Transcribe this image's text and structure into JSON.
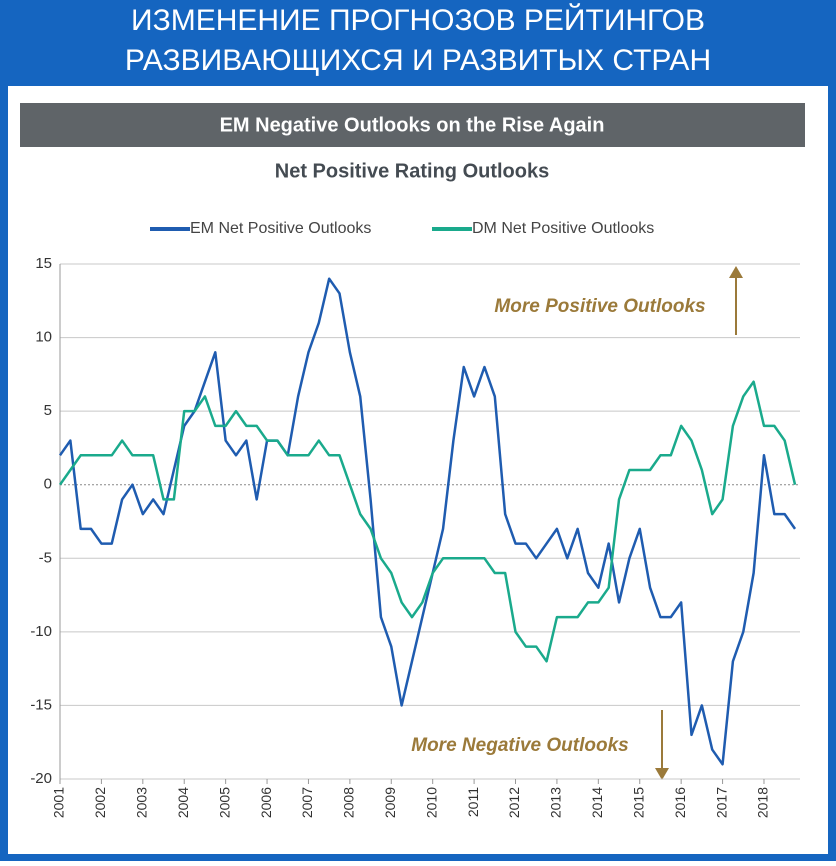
{
  "header": {
    "lines": [
      "ИЗМЕНЕНИЕ ПРОГНОЗОВ РЕЙТИНГОВ",
      "РАЗВИВАЮЩИХСЯ И РАЗВИТЫХ СТРАН"
    ]
  },
  "chart_data": {
    "type": "line",
    "title": "EM Negative Outlooks on the Rise Again",
    "subtitle": "Net Positive Rating Outlooks",
    "annotations": [
      "More Positive Outlooks",
      "More Negative Outlooks"
    ],
    "x": [
      2001,
      2001.25,
      2001.5,
      2001.75,
      2002,
      2002.25,
      2002.5,
      2002.75,
      2003,
      2003.25,
      2003.5,
      2003.75,
      2004,
      2004.25,
      2004.5,
      2004.75,
      2005,
      2005.25,
      2005.5,
      2005.75,
      2006,
      2006.25,
      2006.5,
      2006.75,
      2007,
      2007.25,
      2007.5,
      2007.75,
      2008,
      2008.25,
      2008.5,
      2008.75,
      2009,
      2009.25,
      2009.5,
      2009.75,
      2010,
      2010.25,
      2010.5,
      2010.75,
      2011,
      2011.25,
      2011.5,
      2011.75,
      2012,
      2012.25,
      2012.5,
      2012.75,
      2013,
      2013.25,
      2013.5,
      2013.75,
      2014,
      2014.25,
      2014.5,
      2014.75,
      2015,
      2015.25,
      2015.5,
      2015.75,
      2016,
      2016.25,
      2016.5,
      2016.75,
      2017,
      2017.25,
      2017.5,
      2017.75,
      2018,
      2018.25,
      2018.5,
      2018.75
    ],
    "series": [
      {
        "name": "EM Net Positive Outlooks",
        "color": "#1f5cb0",
        "values": [
          2,
          3,
          -3,
          -3,
          -4,
          -4,
          -1,
          0,
          -2,
          -1,
          -2,
          1,
          4,
          5,
          7,
          9,
          3,
          2,
          3,
          -1,
          3,
          3,
          2,
          6,
          9,
          11,
          14,
          13,
          9,
          6,
          -1,
          -9,
          -11,
          -15,
          -12,
          -9,
          -6,
          -3,
          3,
          8,
          6,
          8,
          6,
          -2,
          -4,
          -4,
          -5,
          -4,
          -3,
          -5,
          -3,
          -6,
          -7,
          -4,
          -8,
          -5,
          -3,
          -7,
          -9,
          -9,
          -8,
          -17,
          -15,
          -18,
          -19,
          -12,
          -10,
          -6,
          2,
          -2,
          -2,
          -3
        ]
      },
      {
        "name": "DM Net Positive Outlooks",
        "color": "#1aaa8c",
        "values": [
          0,
          1,
          2,
          2,
          2,
          2,
          3,
          2,
          2,
          2,
          -1,
          -1,
          5,
          5,
          6,
          4,
          4,
          5,
          4,
          4,
          3,
          3,
          2,
          2,
          2,
          3,
          2,
          2,
          0,
          -2,
          -3,
          -5,
          -6,
          -8,
          -9,
          -8,
          -6,
          -5,
          -5,
          -5,
          -5,
          -5,
          -6,
          -6,
          -10,
          -11,
          -11,
          -12,
          -9,
          -9,
          -9,
          -8,
          -8,
          -7,
          -1,
          1,
          1,
          1,
          2,
          2,
          4,
          3,
          1,
          -2,
          -1,
          4,
          6,
          7,
          4,
          4,
          3,
          0
        ]
      }
    ],
    "xlim": [
      2001,
      2018.87
    ],
    "xticks": [
      2001,
      2002,
      2003,
      2004,
      2005,
      2006,
      2007,
      2008,
      2009,
      2010,
      2011,
      2012,
      2013,
      2014,
      2015,
      2016,
      2017,
      2018
    ],
    "ylim": [
      -20,
      15
    ],
    "yticks": [
      -20,
      -15,
      -10,
      -5,
      0,
      5,
      10,
      15
    ],
    "grid": true
  }
}
